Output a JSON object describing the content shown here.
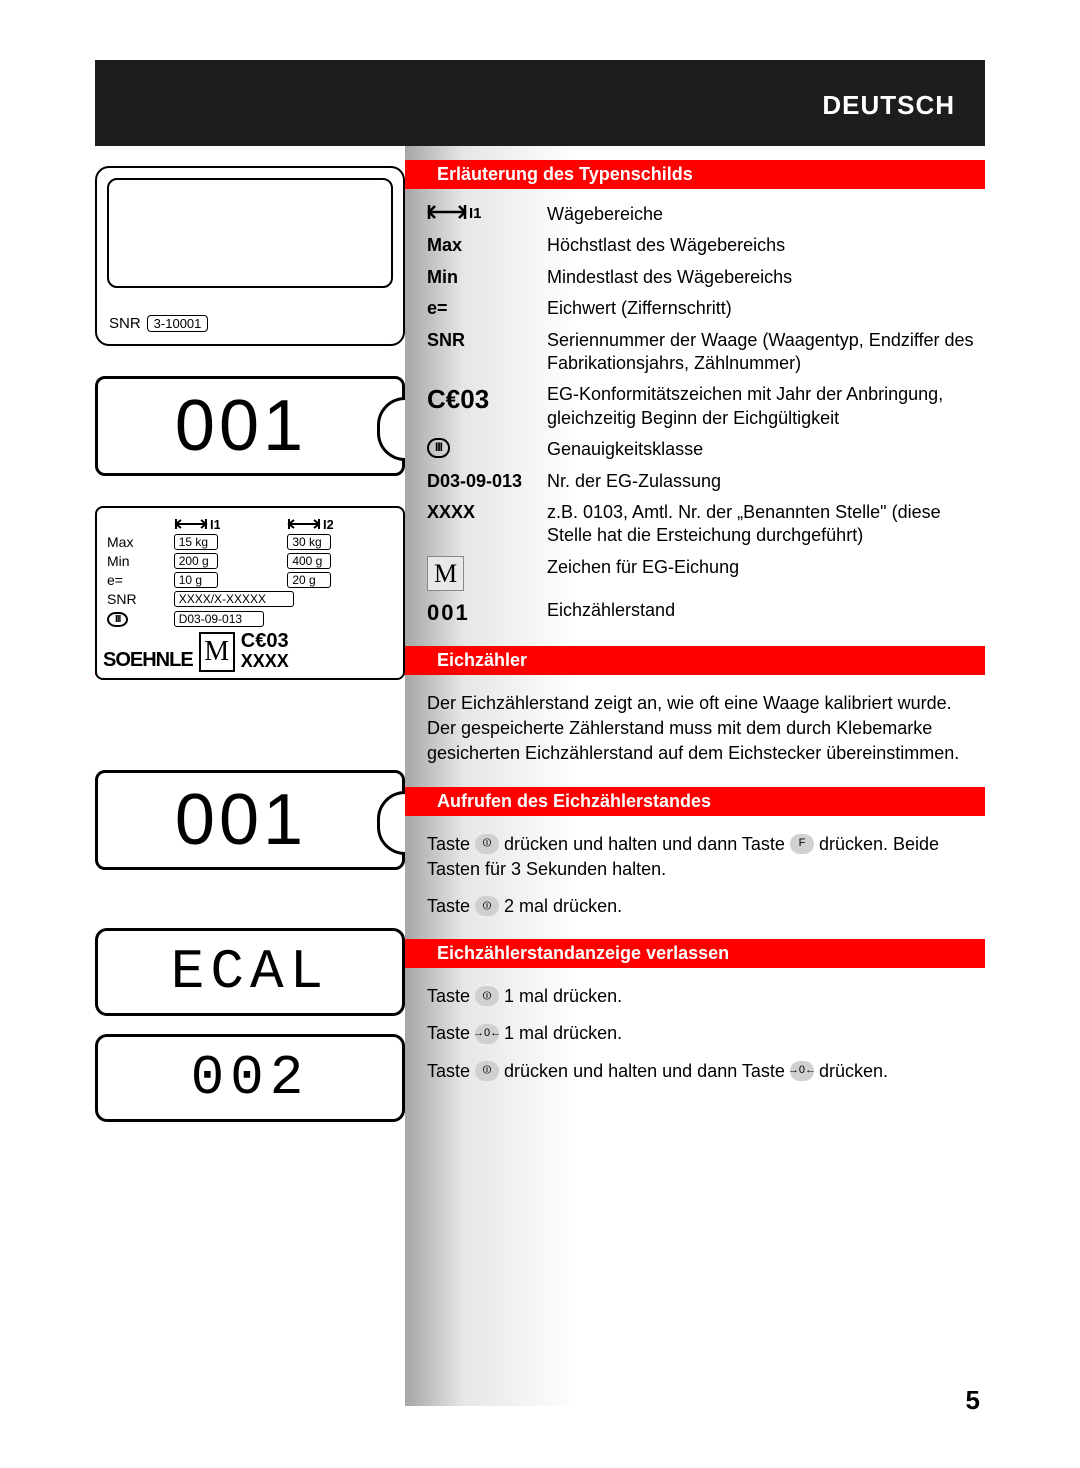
{
  "header": {
    "language": "DEUTSCH"
  },
  "page_number": "5",
  "colors": {
    "red": "#ff0000",
    "black_bar": "#1d1d1d",
    "gradient_from": "#a6a6a6"
  },
  "left": {
    "snr_label": "SNR",
    "snr_value": "3-10001",
    "counter_001": "001",
    "typeplate": {
      "range1_header": "I1",
      "range2_header": "I2",
      "rows": {
        "max": {
          "label": "Max",
          "v1": "15 kg",
          "v2": "30 kg"
        },
        "min": {
          "label": "Min",
          "v1": "200 g",
          "v2": "400 g"
        },
        "e": {
          "label": "e=",
          "v1": "10 g",
          "v2": "20 g"
        }
      },
      "snr": {
        "label": "SNR",
        "value": "XXXX/X-XXXXX"
      },
      "class": "III",
      "approval": "D03-09-013",
      "brand": "SOEHNLE",
      "m": "M",
      "ce": "03",
      "xxxx": "XXXX"
    },
    "counter_001_b": "001",
    "lcd_ecal": "ECAL",
    "lcd_002": "002"
  },
  "sections": [
    {
      "title": "Erläuterung des Typenschilds",
      "wide": false,
      "rows": [
        {
          "key_type": "range",
          "key_text": "I1",
          "val": "Wägebereiche"
        },
        {
          "key_type": "bold",
          "key_text": "Max",
          "val": "Höchstlast des Wägebereichs"
        },
        {
          "key_type": "bold",
          "key_text": "Min",
          "val": "Mindestlast des Wägebereichs"
        },
        {
          "key_type": "bold",
          "key_text": "e=",
          "val": "Eichwert (Ziffernschritt)"
        },
        {
          "key_type": "bold",
          "key_text": "SNR",
          "val": "Seriennummer der Waage (Waagentyp, Endziffer des Fabrikationsjahrs, Zählnummer)"
        },
        {
          "key_type": "ce",
          "key_text": "03",
          "val": "EG-Konformitätszeichen mit Jahr der Anbringung, gleichzeitig Beginn der Eichgültigkeit"
        },
        {
          "key_type": "class",
          "key_text": "III",
          "val": "Genauigkeitsklasse"
        },
        {
          "key_type": "bold",
          "key_text": "D03-09-013",
          "val": "Nr. der EG-Zulassung"
        },
        {
          "key_type": "bold",
          "key_text": "XXXX",
          "val": "z.B. 0103, Amtl. Nr. der „Benannten Stelle\"  (diese Stelle hat die Ersteichung durchgeführt)"
        },
        {
          "key_type": "m",
          "key_text": "M",
          "val": "Zeichen für EG-Eichung"
        },
        {
          "key_type": "001",
          "key_text": "001",
          "val": "Eichzählerstand"
        }
      ]
    },
    {
      "title": "Eichzähler",
      "wide": true,
      "body": [
        {
          "parts": [
            {
              "t": "text",
              "v": "Der Eichzählerstand zeigt an, wie oft eine Waage kalibriert wurde. Der gespeicherte Zählerstand muss mit dem durch Klebemarke gesicherten Eichzählerstand auf dem Eichstecker übereinstimmen."
            }
          ]
        }
      ]
    },
    {
      "title": "Aufrufen des Eichzählerstandes",
      "wide": true,
      "body": [
        {
          "parts": [
            {
              "t": "text",
              "v": "Taste "
            },
            {
              "t": "btn",
              "v": "⏼"
            },
            {
              "t": "text",
              "v": " drücken und halten und dann Taste "
            },
            {
              "t": "btn",
              "v": "F"
            },
            {
              "t": "text",
              "v": " drücken. Beide Tasten für 3 Sekunden halten."
            }
          ]
        },
        {
          "parts": [
            {
              "t": "text",
              "v": "Taste "
            },
            {
              "t": "btn",
              "v": "⏼"
            },
            {
              "t": "text",
              "v": " 2 mal drücken."
            }
          ]
        }
      ]
    },
    {
      "title": "Eichzählerstandanzeige verlassen",
      "wide": true,
      "body": [
        {
          "parts": [
            {
              "t": "text",
              "v": "Taste "
            },
            {
              "t": "btn",
              "v": "⏼"
            },
            {
              "t": "text",
              "v": " 1 mal drücken."
            }
          ]
        },
        {
          "parts": [
            {
              "t": "text",
              "v": "Taste "
            },
            {
              "t": "btn",
              "v": "→0←"
            },
            {
              "t": "text",
              "v": " 1 mal drücken."
            }
          ]
        },
        {
          "parts": [
            {
              "t": "text",
              "v": "Taste "
            },
            {
              "t": "btn",
              "v": "⏼"
            },
            {
              "t": "text",
              "v": " drücken und halten und dann Taste "
            },
            {
              "t": "btn",
              "v": "→0←"
            },
            {
              "t": "text",
              "v": " drücken."
            }
          ]
        }
      ]
    }
  ]
}
